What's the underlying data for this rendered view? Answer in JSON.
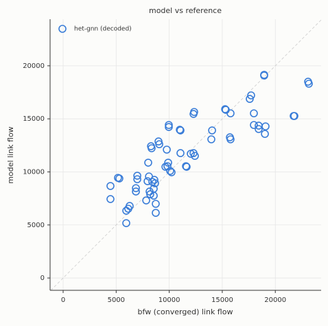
{
  "chart_data": {
    "type": "scatter",
    "title": "model vs reference",
    "xlabel": "bfw (converged) link flow",
    "ylabel": "model link flow",
    "xlim": [
      -1230,
      24320
    ],
    "ylim": [
      -1160,
      24390
    ],
    "xticks": [
      0,
      5000,
      10000,
      15000,
      20000
    ],
    "yticks": [
      0,
      5000,
      10000,
      15000,
      20000
    ],
    "grid": true,
    "legend": "upper left",
    "reference_line": true,
    "series": [
      {
        "name": "het-gnn (decoded)",
        "color": "#3a7dd8",
        "x": [
          4460,
          4460,
          5170,
          5300,
          5950,
          5950,
          6270,
          6140,
          6860,
          6860,
          6990,
          6990,
          7830,
          7960,
          8020,
          8090,
          8150,
          8210,
          8280,
          8340,
          8410,
          8540,
          8540,
          8600,
          8670,
          8730,
          8730,
          8990,
          9060,
          9640,
          9770,
          9900,
          9960,
          9960,
          9830,
          10090,
          10220,
          11000,
          11060,
          11060,
          11580,
          11640,
          12030,
          12290,
          12420,
          12290,
          12350,
          14040,
          13970,
          15270,
          15330,
          15780,
          15720,
          15780,
          17590,
          17720,
          17980,
          17980,
          18430,
          18430,
          19020,
          19080,
          18950,
          18950,
          21730,
          21800,
          23090,
          23160
        ],
        "values": [
          8670,
          7440,
          9440,
          9380,
          6340,
          5170,
          6790,
          6530,
          8470,
          8150,
          9640,
          9310,
          7310,
          9120,
          10870,
          9570,
          8150,
          7890,
          12420,
          12230,
          9060,
          8410,
          7760,
          9250,
          8930,
          6990,
          6140,
          12870,
          12610,
          10480,
          12100,
          10870,
          14420,
          14230,
          10540,
          10090,
          9960,
          13970,
          13910,
          11770,
          10540,
          10480,
          11710,
          11770,
          11510,
          15460,
          15650,
          13910,
          13070,
          15910,
          15850,
          15520,
          13260,
          13070,
          16880,
          17210,
          15520,
          14420,
          14360,
          14040,
          13580,
          14290,
          19150,
          19080,
          15270,
          15270,
          18500,
          18310
        ]
      }
    ]
  }
}
